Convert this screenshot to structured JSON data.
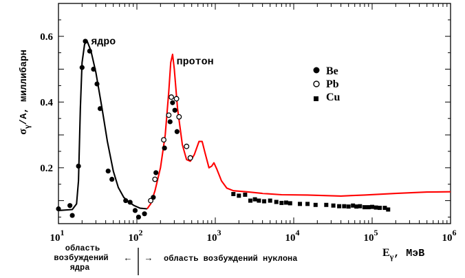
{
  "chart_data": {
    "type": "line",
    "xscale": "log",
    "xlim": [
      10,
      1000000
    ],
    "ylim": [
      0.03,
      0.7
    ],
    "x_ticks": [
      {
        "value": 10,
        "base": "10",
        "exp": "1"
      },
      {
        "value": 100,
        "base": "10",
        "exp": "2"
      },
      {
        "value": 1000,
        "base": "10",
        "exp": "3"
      },
      {
        "value": 10000,
        "base": "10",
        "exp": "4"
      },
      {
        "value": 100000,
        "base": "10",
        "exp": "5"
      },
      {
        "value": 1000000,
        "base": "10",
        "exp": "6"
      }
    ],
    "y_ticks": [
      0.2,
      0.4,
      0.6
    ],
    "y_tick_labels": [
      "0.2",
      "0.4",
      "0.6"
    ],
    "xlabel": {
      "main": "E",
      "sub": "γ",
      "rest": ", МэВ"
    },
    "ylabel": {
      "main": "σ",
      "sub": "γ",
      "rest": "/A, миллибарн"
    },
    "curves": [
      {
        "name": "ядро",
        "color": "#000000",
        "points": [
          [
            10,
            0.07
          ],
          [
            15,
            0.073
          ],
          [
            17,
            0.09
          ],
          [
            18,
            0.16
          ],
          [
            19,
            0.38
          ],
          [
            20,
            0.52
          ],
          [
            21.5,
            0.575
          ],
          [
            23,
            0.588
          ],
          [
            26,
            0.555
          ],
          [
            30,
            0.49
          ],
          [
            36,
            0.38
          ],
          [
            42,
            0.28
          ],
          [
            50,
            0.19
          ],
          [
            58,
            0.14
          ],
          [
            68,
            0.11
          ],
          [
            80,
            0.095
          ],
          [
            92,
            0.085
          ],
          [
            110,
            0.077
          ],
          [
            135,
            0.075
          ]
        ]
      },
      {
        "name": "протон",
        "color": "#ff0000",
        "points": [
          [
            135,
            0.075
          ],
          [
            150,
            0.09
          ],
          [
            170,
            0.13
          ],
          [
            200,
            0.2
          ],
          [
            230,
            0.3
          ],
          [
            255,
            0.43
          ],
          [
            270,
            0.52
          ],
          [
            285,
            0.545
          ],
          [
            300,
            0.5
          ],
          [
            330,
            0.38
          ],
          [
            380,
            0.27
          ],
          [
            430,
            0.225
          ],
          [
            480,
            0.22
          ],
          [
            540,
            0.24
          ],
          [
            620,
            0.28
          ],
          [
            680,
            0.28
          ],
          [
            740,
            0.245
          ],
          [
            830,
            0.2
          ],
          [
            900,
            0.205
          ],
          [
            960,
            0.215
          ],
          [
            1050,
            0.195
          ],
          [
            1200,
            0.16
          ],
          [
            1400,
            0.138
          ],
          [
            1700,
            0.13
          ],
          [
            2500,
            0.127
          ],
          [
            4000,
            0.122
          ],
          [
            7000,
            0.118
          ],
          [
            15000,
            0.117
          ],
          [
            40000,
            0.114
          ],
          [
            80000,
            0.117
          ],
          [
            200000,
            0.122
          ],
          [
            500000,
            0.126
          ],
          [
            1000000,
            0.127
          ]
        ]
      }
    ],
    "series": [
      {
        "name": "Be",
        "marker": "filled-circle",
        "points": [
          [
            10,
            0.075
          ],
          [
            14,
            0.085
          ],
          [
            15,
            0.055
          ],
          [
            18,
            0.205
          ],
          [
            20,
            0.505
          ],
          [
            22,
            0.585
          ],
          [
            25,
            0.555
          ],
          [
            28,
            0.5
          ],
          [
            31,
            0.455
          ],
          [
            34,
            0.38
          ],
          [
            43,
            0.19
          ],
          [
            48,
            0.165
          ],
          [
            72,
            0.1
          ],
          [
            82,
            0.095
          ],
          [
            95,
            0.07
          ],
          [
            105,
            0.05
          ],
          [
            125,
            0.06
          ],
          [
            162,
            0.11
          ],
          [
            175,
            0.185
          ],
          [
            225,
            0.26
          ],
          [
            265,
            0.34
          ],
          [
            285,
            0.398
          ],
          [
            305,
            0.375
          ],
          [
            325,
            0.31
          ]
        ]
      },
      {
        "name": "Pb",
        "marker": "open-circle",
        "points": [
          [
            150,
            0.1
          ],
          [
            170,
            0.165
          ],
          [
            220,
            0.285
          ],
          [
            255,
            0.36
          ],
          [
            275,
            0.415
          ],
          [
            320,
            0.41
          ],
          [
            345,
            0.355
          ],
          [
            430,
            0.265
          ],
          [
            480,
            0.23
          ]
        ]
      },
      {
        "name": "Cu",
        "marker": "filled-square",
        "points": [
          [
            1700,
            0.12
          ],
          [
            2000,
            0.115
          ],
          [
            2400,
            0.118
          ],
          [
            2800,
            0.1
          ],
          [
            3200,
            0.104
          ],
          [
            3600,
            0.1
          ],
          [
            4200,
            0.098
          ],
          [
            5000,
            0.1
          ],
          [
            6000,
            0.096
          ],
          [
            7000,
            0.093
          ],
          [
            8000,
            0.094
          ],
          [
            9000,
            0.092
          ],
          [
            12000,
            0.09
          ],
          [
            15000,
            0.09
          ],
          [
            19000,
            0.087
          ],
          [
            26000,
            0.087
          ],
          [
            32000,
            0.085
          ],
          [
            38000,
            0.083
          ],
          [
            44000,
            0.083
          ],
          [
            50000,
            0.082
          ],
          [
            57000,
            0.085
          ],
          [
            63000,
            0.082
          ],
          [
            70000,
            0.083
          ],
          [
            80000,
            0.08
          ],
          [
            90000,
            0.08
          ],
          [
            100000,
            0.081
          ],
          [
            112000,
            0.079
          ],
          [
            125000,
            0.078
          ],
          [
            145000,
            0.078
          ],
          [
            160000,
            0.073
          ]
        ]
      }
    ],
    "curve_labels": [
      {
        "text": "ядро",
        "x": 26,
        "y": 0.575
      },
      {
        "text": "протон",
        "x": 320,
        "y": 0.515
      }
    ],
    "legend": {
      "placement": "top-right",
      "entries": [
        {
          "text": "Be",
          "marker": "filled-circle"
        },
        {
          "text": "Pb",
          "marker": "open-circle"
        },
        {
          "text": "Cu",
          "marker": "filled-square"
        }
      ]
    },
    "annotations": {
      "left_line1": "область",
      "left_line2": "возбуждений",
      "left_line3": "ядра",
      "right": "область возбуждений нуклона",
      "arrow_left": "←",
      "arrow_right": "→"
    }
  }
}
